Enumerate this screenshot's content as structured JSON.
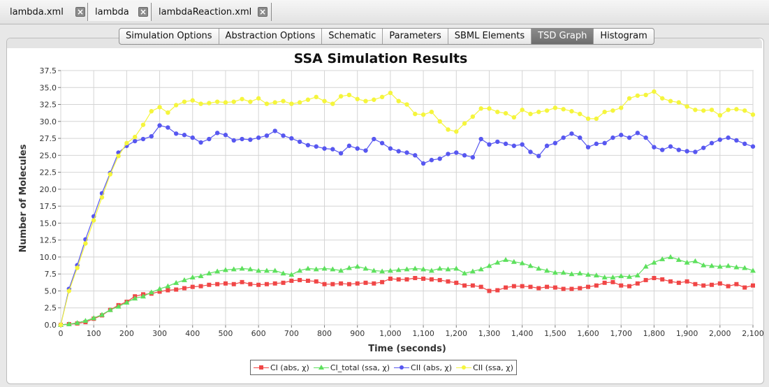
{
  "doc_tabs": [
    {
      "label": "lambda.xml"
    },
    {
      "label": "lambda"
    },
    {
      "label": "lambdaReaction.xml"
    }
  ],
  "sub_tabs": [
    {
      "label": "Simulation Options"
    },
    {
      "label": "Abstraction Options"
    },
    {
      "label": "Schematic"
    },
    {
      "label": "Parameters"
    },
    {
      "label": "SBML Elements"
    },
    {
      "label": "TSD Graph"
    },
    {
      "label": "Histogram"
    }
  ],
  "selected_sub_tab": "TSD Graph",
  "chart_data": {
    "type": "line",
    "title": "SSA Simulation Results",
    "xlabel": "Time (seconds)",
    "ylabel": "Number of Molecules",
    "xlim": [
      0,
      2100
    ],
    "ylim": [
      0,
      37.5
    ],
    "grid": true,
    "legend_position": "bottom",
    "x_ticks": [
      "0",
      "100",
      "200",
      "300",
      "400",
      "500",
      "600",
      "700",
      "800",
      "900",
      "1,000",
      "1,100",
      "1,200",
      "1,300",
      "1,400",
      "1,500",
      "1,600",
      "1,700",
      "1,800",
      "1,900",
      "2,000",
      "2,100"
    ],
    "y_ticks": [
      "0.0",
      "2.5",
      "5.0",
      "7.5",
      "10.0",
      "12.5",
      "15.0",
      "17.5",
      "20.0",
      "22.5",
      "25.0",
      "27.5",
      "30.0",
      "32.5",
      "35.0",
      "37.5"
    ],
    "x": [
      0,
      25,
      50,
      75,
      100,
      125,
      150,
      175,
      200,
      225,
      250,
      275,
      300,
      325,
      350,
      375,
      400,
      425,
      450,
      475,
      500,
      525,
      550,
      575,
      600,
      625,
      650,
      675,
      700,
      725,
      750,
      775,
      800,
      825,
      850,
      875,
      900,
      925,
      950,
      975,
      1000,
      1025,
      1050,
      1075,
      1100,
      1125,
      1150,
      1175,
      1200,
      1225,
      1250,
      1275,
      1300,
      1325,
      1350,
      1375,
      1400,
      1425,
      1450,
      1475,
      1500,
      1525,
      1550,
      1575,
      1600,
      1625,
      1650,
      1675,
      1700,
      1725,
      1750,
      1775,
      1800,
      1825,
      1850,
      1875,
      1900,
      1925,
      1950,
      1975,
      2000,
      2025,
      2050,
      2075,
      2100
    ],
    "series": [
      {
        "name": "CI (abs, χ)",
        "color": "#f04646",
        "marker": "square",
        "values": [
          0,
          0.1,
          0.2,
          0.4,
          0.9,
          1.4,
          2.2,
          2.9,
          3.4,
          4.2,
          4.5,
          4.6,
          4.9,
          5.1,
          5.2,
          5.4,
          5.6,
          5.7,
          5.9,
          6.0,
          6.1,
          6.0,
          6.3,
          6.0,
          5.9,
          6.0,
          6.1,
          6.2,
          6.5,
          6.6,
          6.5,
          6.4,
          6.0,
          6.0,
          6.1,
          6.0,
          6.1,
          6.2,
          6.1,
          6.3,
          6.8,
          6.7,
          6.7,
          6.9,
          6.8,
          6.7,
          6.6,
          6.4,
          6.2,
          5.8,
          5.8,
          5.6,
          5.0,
          5.1,
          5.5,
          5.7,
          5.7,
          5.6,
          5.4,
          5.6,
          5.5,
          5.3,
          5.3,
          5.4,
          5.6,
          5.8,
          6.2,
          6.3,
          5.8,
          5.7,
          6.1,
          6.6,
          6.9,
          6.7,
          6.4,
          6.2,
          6.4,
          6.0,
          5.8,
          5.9,
          6.1,
          5.7,
          6.0,
          5.5,
          5.8
        ]
      },
      {
        "name": "CI_total (ssa, χ)",
        "color": "#5de05d",
        "marker": "triangle",
        "values": [
          0,
          0.1,
          0.3,
          0.6,
          1.0,
          1.5,
          2.2,
          2.7,
          3.3,
          3.9,
          4.2,
          4.8,
          5.3,
          5.7,
          6.2,
          6.6,
          7.0,
          7.2,
          7.6,
          7.9,
          8.1,
          8.2,
          8.3,
          8.2,
          8.0,
          8.0,
          8.0,
          7.6,
          7.4,
          8.0,
          8.3,
          8.2,
          8.3,
          8.2,
          8.0,
          8.4,
          8.6,
          8.3,
          8.0,
          7.9,
          8.0,
          8.1,
          8.2,
          8.3,
          8.2,
          8.0,
          8.3,
          8.2,
          8.3,
          7.6,
          7.9,
          8.2,
          8.7,
          9.2,
          9.6,
          9.3,
          9.1,
          8.7,
          8.3,
          8.0,
          7.7,
          7.7,
          7.5,
          7.6,
          7.4,
          7.3,
          7.0,
          7.0,
          7.2,
          7.1,
          7.3,
          8.6,
          9.2,
          9.7,
          10.0,
          9.6,
          9.2,
          9.4,
          8.8,
          8.7,
          8.6,
          8.7,
          8.5,
          8.4,
          8.0
        ]
      },
      {
        "name": "CII (abs, χ)",
        "color": "#5757f0",
        "marker": "circle",
        "values": [
          0,
          5.3,
          8.8,
          12.6,
          16.0,
          19.4,
          22.4,
          25.4,
          26.4,
          27.1,
          27.4,
          27.8,
          29.4,
          29.1,
          28.2,
          28.0,
          27.6,
          26.9,
          27.4,
          28.3,
          28.0,
          27.2,
          27.4,
          27.3,
          27.6,
          27.9,
          28.6,
          27.9,
          27.5,
          27.0,
          26.5,
          26.3,
          26.0,
          25.9,
          25.3,
          26.4,
          26.0,
          25.7,
          27.4,
          26.8,
          26.0,
          25.6,
          25.4,
          25.0,
          23.8,
          24.3,
          24.5,
          25.2,
          25.4,
          25.0,
          24.7,
          27.4,
          26.6,
          27.0,
          26.7,
          26.4,
          26.6,
          25.5,
          24.9,
          26.4,
          26.8,
          27.6,
          28.2,
          27.6,
          26.2,
          26.7,
          26.8,
          27.6,
          28.0,
          27.6,
          28.3,
          27.6,
          26.2,
          25.8,
          26.3,
          25.8,
          25.6,
          25.5,
          26.1,
          26.8,
          27.3,
          27.6,
          27.2,
          26.7,
          26.3
        ]
      },
      {
        "name": "CII (ssa, χ)",
        "color": "#f5f53c",
        "marker": "circle",
        "values": [
          0,
          5.0,
          8.4,
          12.0,
          15.4,
          18.8,
          22.2,
          24.9,
          26.8,
          27.7,
          29.5,
          31.5,
          32.1,
          31.3,
          32.4,
          32.9,
          33.1,
          32.6,
          32.7,
          32.9,
          32.8,
          32.9,
          33.3,
          32.9,
          33.4,
          32.6,
          32.8,
          33.0,
          32.6,
          32.8,
          33.2,
          33.6,
          33.0,
          32.6,
          33.7,
          33.9,
          33.3,
          33.0,
          33.2,
          33.6,
          34.2,
          33.0,
          32.5,
          31.1,
          31.0,
          31.4,
          30.0,
          28.8,
          28.5,
          29.7,
          30.7,
          31.9,
          31.9,
          31.4,
          31.2,
          30.6,
          31.7,
          31.1,
          31.4,
          31.6,
          32.0,
          31.8,
          31.5,
          31.1,
          30.4,
          30.4,
          31.4,
          31.6,
          32.0,
          33.4,
          33.8,
          33.9,
          34.4,
          33.4,
          33.0,
          32.8,
          32.2,
          31.7,
          31.6,
          31.7,
          30.9,
          31.7,
          31.8,
          31.6,
          31.0
        ]
      }
    ]
  }
}
